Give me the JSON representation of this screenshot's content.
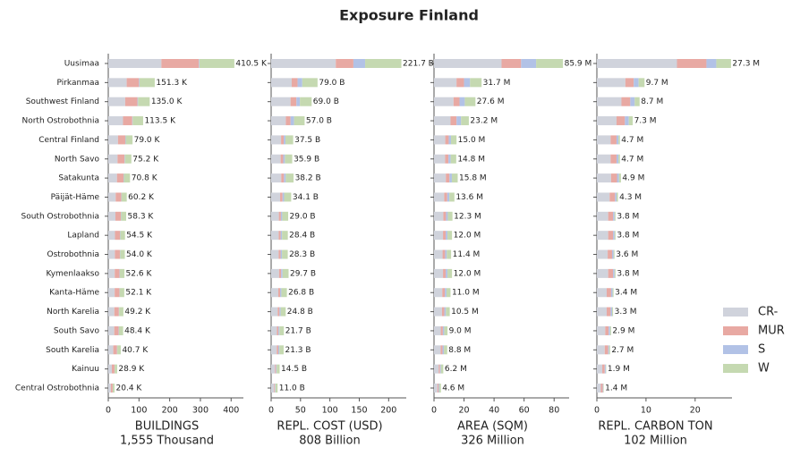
{
  "title": "Exposure Finland",
  "legend": {
    "position": "lower right"
  },
  "chart_data": [
    {
      "type": "barh",
      "xlabel": "BUILDINGS",
      "subtitle": "1,555 Thousand",
      "categories": [
        "Uusimaa",
        "Pirkanmaa",
        "Southwest Finland",
        "North Ostrobothnia",
        "Central Finland",
        "North Savo",
        "Satakunta",
        "Päijät-Häme",
        "South Ostrobothnia",
        "Lapland",
        "Ostrobothnia",
        "Kymenlaakso",
        "Kanta-Häme",
        "North Karelia",
        "South Savo",
        "South Karelia",
        "Kainuu",
        "Central Ostrobothnia"
      ],
      "xlim": [
        0,
        440
      ],
      "xticks": [
        0,
        100,
        200,
        300,
        400
      ],
      "series": [
        {
          "name": "CR-",
          "color": "#d0d3dc",
          "values": [
            173,
            60,
            55,
            48,
            31.6,
            30.1,
            28.3,
            24.1,
            23.3,
            21.8,
            21.6,
            21.0,
            20.8,
            19.7,
            19.4,
            16.3,
            11.6,
            8.2
          ]
        },
        {
          "name": "MUR",
          "color": "#e8a9a3",
          "values": [
            122,
            40,
            40,
            30,
            23.7,
            22.6,
            21.2,
            18.1,
            17.5,
            16.4,
            16.2,
            15.8,
            15.6,
            14.8,
            14.5,
            12.2,
            8.7,
            6.1
          ]
        },
        {
          "name": "S",
          "color": "#b2c2e6",
          "values": [
            2,
            2,
            2,
            1.5,
            1.6,
            1.5,
            1.4,
            1.2,
            1.2,
            1.1,
            1.1,
            1.1,
            1.0,
            1.0,
            1.0,
            0.8,
            0.6,
            0.4
          ]
        },
        {
          "name": "W",
          "color": "#c5d9b1",
          "values": [
            113.5,
            49.3,
            38,
            34,
            22.1,
            21.0,
            19.9,
            16.8,
            16.3,
            15.2,
            15.1,
            14.7,
            14.7,
            13.7,
            13.5,
            11.4,
            8.0,
            5.7
          ]
        }
      ],
      "totals": [
        410.5,
        151.3,
        135.0,
        113.5,
        79.0,
        75.2,
        70.8,
        60.2,
        58.3,
        54.5,
        54.0,
        52.6,
        52.1,
        49.2,
        48.4,
        40.7,
        28.9,
        20.4
      ],
      "total_labels": [
        "410.5 K",
        "151.3 K",
        "135.0 K",
        "113.5 K",
        "79.0 K",
        "75.2 K",
        "70.8 K",
        "60.2 K",
        "58.3 K",
        "54.5 K",
        "54.0 K",
        "52.6 K",
        "52.1 K",
        "49.2 K",
        "48.4 K",
        "40.7 K",
        "28.9 K",
        "20.4 K"
      ]
    },
    {
      "type": "barh",
      "xlabel": "REPL. COST (USD)",
      "subtitle": "808 Billion",
      "xlim": [
        0,
        230
      ],
      "xticks": [
        0,
        50,
        100,
        150,
        200
      ],
      "series": [
        {
          "name": "CR-",
          "color": "#d0d3dc",
          "values": [
            110,
            35,
            33,
            25,
            16.9,
            16.2,
            17.2,
            15.3,
            13.1,
            12.8,
            12.7,
            13.4,
            12.1,
            11.2,
            9.8,
            9.6,
            6.5,
            5.0
          ]
        },
        {
          "name": "MUR",
          "color": "#e8a9a3",
          "values": [
            30,
            10,
            10,
            8,
            4.5,
            4.3,
            4.6,
            4.1,
            3.5,
            3.4,
            3.4,
            3.6,
            3.2,
            3.0,
            2.6,
            2.6,
            1.7,
            1.3
          ]
        },
        {
          "name": "S",
          "color": "#b2c2e6",
          "values": [
            20,
            8,
            6,
            6,
            3.0,
            2.9,
            3.1,
            2.7,
            2.3,
            2.3,
            2.3,
            2.4,
            2.1,
            2.0,
            1.7,
            1.7,
            1.2,
            0.9
          ]
        },
        {
          "name": "W",
          "color": "#c5d9b1",
          "values": [
            61.7,
            26,
            20,
            18,
            13.1,
            12.5,
            13.3,
            12.0,
            10.1,
            9.9,
            9.9,
            10.3,
            9.4,
            8.6,
            7.6,
            7.4,
            5.1,
            3.8
          ]
        }
      ],
      "totals": [
        221.7,
        79.0,
        69.0,
        57.0,
        37.5,
        35.9,
        38.2,
        34.1,
        29.0,
        28.4,
        28.3,
        29.7,
        26.8,
        24.8,
        21.7,
        21.3,
        14.5,
        11.0
      ],
      "total_labels": [
        "221.7 B",
        "79.0 B",
        "69.0 B",
        "57.0 B",
        "37.5 B",
        "35.9 B",
        "38.2 B",
        "34.1 B",
        "29.0 B",
        "28.4 B",
        "28.3 B",
        "29.7 B",
        "26.8 B",
        "24.8 B",
        "21.7 B",
        "21.3 B",
        "14.5 B",
        "11.0 B"
      ]
    },
    {
      "type": "barh",
      "xlabel": "AREA (SQM)",
      "subtitle": "326 Million",
      "xlim": [
        0,
        90
      ],
      "xticks": [
        0,
        20,
        40,
        60,
        80
      ],
      "series": [
        {
          "name": "CR-",
          "color": "#d0d3dc",
          "values": [
            45,
            15,
            13,
            11,
            7.5,
            7.4,
            7.9,
            6.8,
            6.2,
            6.0,
            5.7,
            6.0,
            5.5,
            5.3,
            4.5,
            4.4,
            3.1,
            2.3
          ]
        },
        {
          "name": "MUR",
          "color": "#e8a9a3",
          "values": [
            13,
            5,
            4,
            4,
            2.3,
            2.2,
            2.4,
            2.0,
            1.8,
            1.8,
            1.7,
            1.8,
            1.7,
            1.6,
            1.4,
            1.3,
            0.9,
            0.7
          ]
        },
        {
          "name": "S",
          "color": "#b2c2e6",
          "values": [
            10,
            4,
            3.5,
            3,
            1.5,
            1.5,
            1.6,
            1.4,
            1.2,
            1.2,
            1.1,
            1.2,
            1.1,
            1.0,
            0.9,
            0.9,
            0.6,
            0.5
          ]
        },
        {
          "name": "W",
          "color": "#c5d9b1",
          "values": [
            17.9,
            7.7,
            7.1,
            5.2,
            3.7,
            3.7,
            3.9,
            3.4,
            3.1,
            3.0,
            2.9,
            3.0,
            2.7,
            2.6,
            2.2,
            2.2,
            1.6,
            1.1
          ]
        }
      ],
      "totals": [
        85.9,
        31.7,
        27.6,
        23.2,
        15.0,
        14.8,
        15.8,
        13.6,
        12.3,
        12.0,
        11.4,
        12.0,
        11.0,
        10.5,
        9.0,
        8.8,
        6.2,
        4.6
      ],
      "total_labels": [
        "85.9 M",
        "31.7 M",
        "27.6 M",
        "23.2 M",
        "15.0 M",
        "14.8 M",
        "15.8 M",
        "13.6 M",
        "12.3 M",
        "12.0 M",
        "11.4 M",
        "12.0 M",
        "11.0 M",
        "10.5 M",
        "9.0 M",
        "8.8 M",
        "6.2 M",
        "4.6 M"
      ]
    },
    {
      "type": "barh",
      "xlabel": "REPL. CARBON TON",
      "subtitle": "102 Million",
      "xlim": [
        0,
        27.5
      ],
      "xticks": [
        0,
        10,
        20
      ],
      "series": [
        {
          "name": "CR-",
          "color": "#d0d3dc",
          "values": [
            16.3,
            5.8,
            5.0,
            4.0,
            2.8,
            2.8,
            2.9,
            2.6,
            2.3,
            2.3,
            2.2,
            2.3,
            2.0,
            2.0,
            1.7,
            1.6,
            1.1,
            0.8
          ]
        },
        {
          "name": "MUR",
          "color": "#e8a9a3",
          "values": [
            6.0,
            1.7,
            1.8,
            1.7,
            1.2,
            1.2,
            1.2,
            1.1,
            1.0,
            1.0,
            0.9,
            1.0,
            0.9,
            0.8,
            0.7,
            0.7,
            0.5,
            0.4
          ]
        },
        {
          "name": "S",
          "color": "#b2c2e6",
          "values": [
            2.0,
            1.0,
            0.9,
            0.8,
            0.4,
            0.4,
            0.4,
            0.3,
            0.3,
            0.3,
            0.3,
            0.3,
            0.3,
            0.3,
            0.3,
            0.2,
            0.2,
            0.1
          ]
        },
        {
          "name": "W",
          "color": "#c5d9b1",
          "values": [
            3.0,
            1.2,
            1.0,
            0.8,
            0.3,
            0.3,
            0.4,
            0.3,
            0.2,
            0.2,
            0.2,
            0.2,
            0.2,
            0.2,
            0.2,
            0.2,
            0.1,
            0.1
          ]
        }
      ],
      "totals": [
        27.3,
        9.7,
        8.7,
        7.3,
        4.7,
        4.7,
        4.9,
        4.3,
        3.8,
        3.8,
        3.6,
        3.8,
        3.4,
        3.3,
        2.9,
        2.7,
        1.9,
        1.4
      ],
      "total_labels": [
        "27.3 M",
        "9.7 M",
        "8.7 M",
        "7.3 M",
        "4.7 M",
        "4.7 M",
        "4.9 M",
        "4.3 M",
        "3.8 M",
        "3.8 M",
        "3.6 M",
        "3.8 M",
        "3.4 M",
        "3.3 M",
        "2.9 M",
        "2.7 M",
        "1.9 M",
        "1.4 M"
      ]
    }
  ]
}
